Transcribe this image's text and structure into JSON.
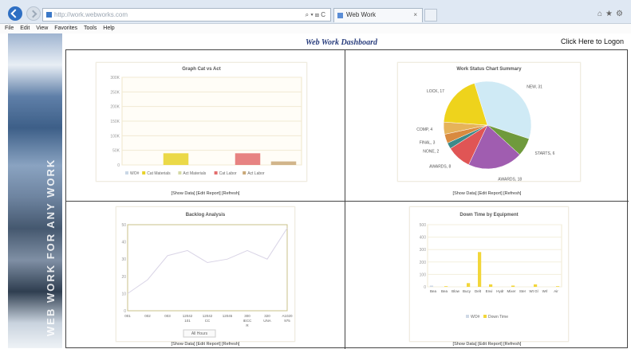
{
  "browser": {
    "address": "http://work.webworks.com",
    "tab_title": "Web Work",
    "menu": [
      "File",
      "Edit",
      "View",
      "Favorites",
      "Tools",
      "Help"
    ]
  },
  "page": {
    "title": "Web Work Dashboard",
    "logon_link": "Click Here to Logon",
    "side_banner_text": "WEB WORK FOR ANY WORK"
  },
  "panel_links": "[Show Data] [Edit Report] [Refresh]",
  "chart_data": [
    {
      "type": "bar",
      "title": "Graph Cat  vs Act",
      "categories": [
        "WO#",
        "Cat Materials",
        "Act Materials",
        "Cat Labor",
        "Act Labor"
      ],
      "series": [
        {
          "name": "WO#",
          "values": [
            0,
            0,
            0,
            0,
            0
          ]
        },
        {
          "name": "Cat Materials",
          "values": [
            0,
            40000,
            0,
            0,
            0
          ]
        },
        {
          "name": "Act Materials",
          "values": [
            0,
            0,
            0,
            0,
            0
          ]
        },
        {
          "name": "Cat Labor",
          "values": [
            0,
            0,
            0,
            40000,
            0
          ]
        },
        {
          "name": "Act Labor",
          "values": [
            0,
            0,
            0,
            0,
            12000
          ]
        }
      ],
      "y_ticks": [
        "300K",
        "250K",
        "200K",
        "150K",
        "100K",
        "50K",
        "0"
      ],
      "legend": [
        "WO#",
        "Cat Materials",
        "Act Materials",
        "Cat Labor",
        "Act Labor"
      ],
      "ylim": [
        0,
        300000
      ],
      "colors": [
        "#c9d7e6",
        "#e8d229",
        "#d4d9a6",
        "#e36d6d",
        "#c9a878"
      ]
    },
    {
      "type": "pie",
      "title": "Work Status Chart Summary",
      "slices": [
        {
          "label": "NEW, 31",
          "value": 31,
          "color": "#cfeaf5"
        },
        {
          "label": "STARTS, 6",
          "value": 6,
          "color": "#6f9a3d"
        },
        {
          "label": "AWARDS, 18",
          "value": 18,
          "color": "#a05db0"
        },
        {
          "label": "AWARDS, 8",
          "value": 8,
          "color": "#e05555"
        },
        {
          "label": "NONE, 2",
          "value": 2,
          "color": "#3d8a8a"
        },
        {
          "label": "FINAL, 3",
          "value": 3,
          "color": "#d98a3f"
        },
        {
          "label": "COMP, 4",
          "value": 4,
          "color": "#e6b35a"
        },
        {
          "label": "LOCK, 17",
          "value": 17,
          "color": "#eed31c"
        }
      ]
    },
    {
      "type": "line",
      "title": "Backlog Analysis",
      "categories": [
        "001",
        "002",
        "003",
        "12042 101",
        "12042 CC",
        "12045",
        "300 IECC R",
        "320 UNA",
        "A1020 975"
      ],
      "series": [
        {
          "name": "All Hours",
          "values": [
            10,
            18,
            32,
            35,
            28,
            30,
            35,
            30,
            48
          ]
        }
      ],
      "y_ticks": [
        "50",
        "40",
        "30",
        "20",
        "10",
        "0"
      ],
      "legend": [
        "All Hours"
      ],
      "ylim": [
        0,
        50
      ]
    },
    {
      "type": "bar",
      "title": "Down Time by Equipment",
      "categories": [
        "Bea",
        "Bea",
        "Blow",
        "Bucy",
        "Delt",
        "Envi",
        "Hydr",
        "Mixer",
        "Ster",
        "Wt Gl",
        "Wrl",
        "Air"
      ],
      "series": [
        {
          "name": "WO#",
          "values": [
            10,
            0,
            0,
            0,
            0,
            0,
            0,
            0,
            0,
            0,
            0,
            0
          ]
        },
        {
          "name": "Down Time",
          "values": [
            0,
            5,
            0,
            30,
            280,
            20,
            0,
            10,
            0,
            20,
            0,
            5
          ]
        }
      ],
      "y_ticks": [
        "500",
        "400",
        "300",
        "200",
        "100",
        "0"
      ],
      "legend": [
        "WO#",
        "Down Time"
      ],
      "ylim": [
        0,
        500
      ],
      "colors": [
        "#cfd9e6",
        "#f2d63a"
      ]
    }
  ]
}
